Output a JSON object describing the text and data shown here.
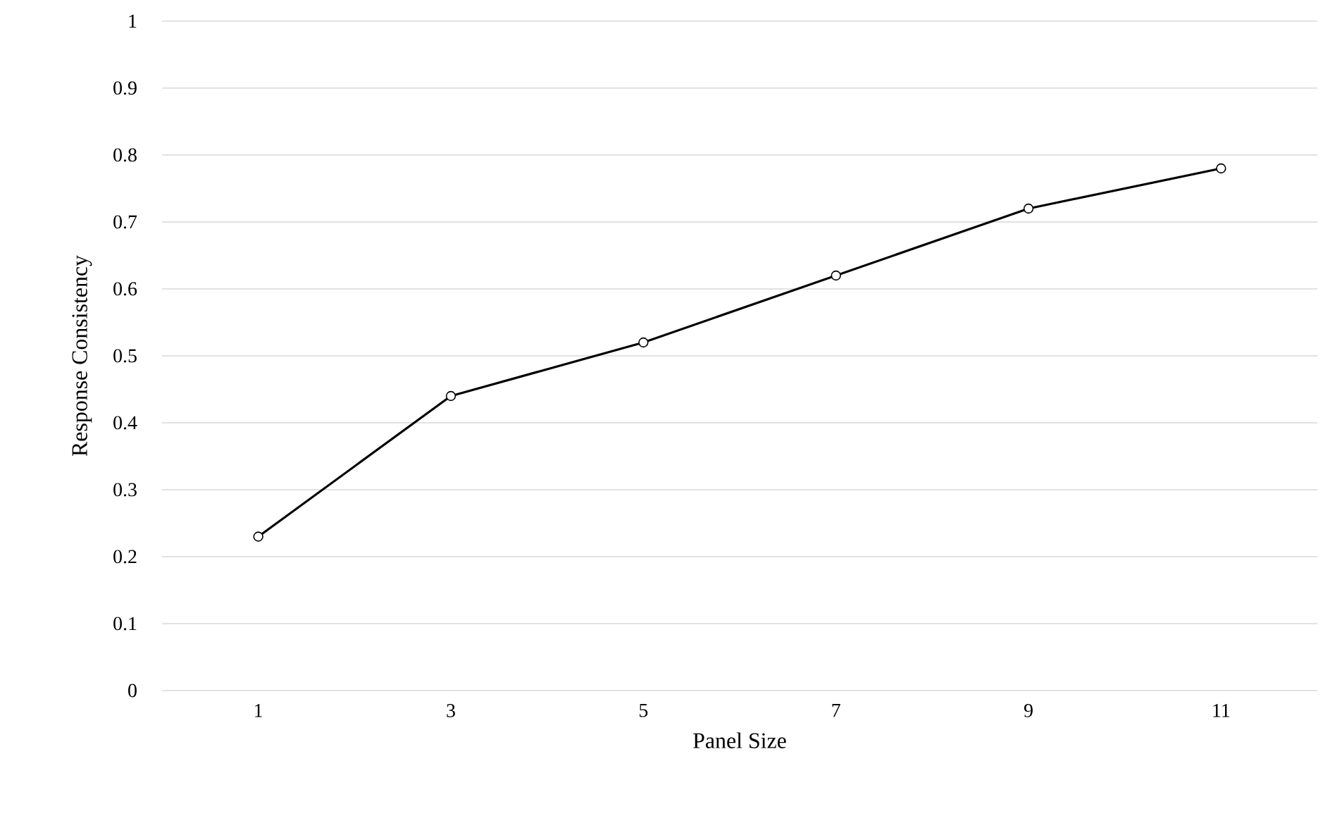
{
  "chart_data": {
    "type": "line",
    "xlabel": "Panel Size",
    "ylabel": "Response Consistency",
    "categories": [
      "1",
      "3",
      "5",
      "7",
      "9",
      "11"
    ],
    "values": [
      0.23,
      0.44,
      0.52,
      0.62,
      0.72,
      0.78
    ],
    "color": "#000000",
    "marker": "circle",
    "grid": "y",
    "ylim": [
      0,
      1
    ],
    "yticks": [
      0,
      0.1,
      0.2,
      0.3,
      0.4,
      0.5,
      0.6,
      0.7,
      0.8,
      0.9,
      1
    ]
  }
}
